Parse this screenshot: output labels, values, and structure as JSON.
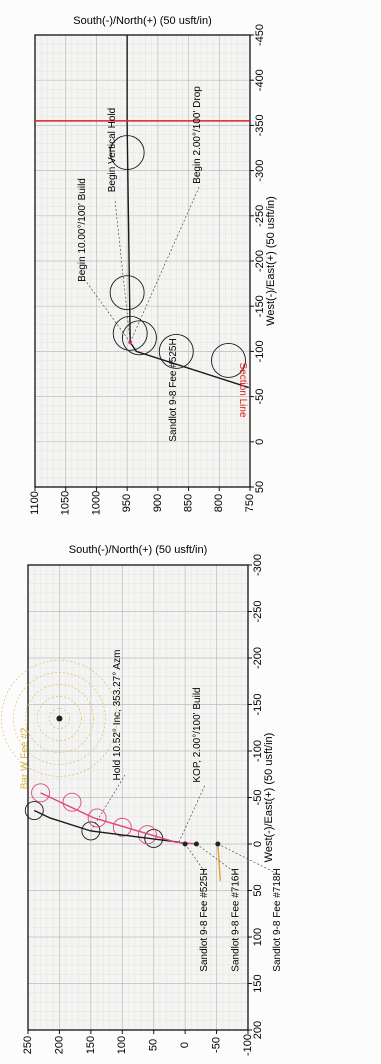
{
  "chart_data": [
    {
      "type": "line",
      "panel": "plan view (page rotated 90 degrees)",
      "title": "",
      "xlabel": "West(-)/East(+) (50 usft/in)",
      "ylabel": "South(-)/North(+) (50 usft/in)",
      "xlim": [
        -300,
        200
      ],
      "ylim": [
        -100,
        250
      ],
      "x_ticks": [
        "-300",
        "-250",
        "-200",
        "-150",
        "-100",
        "-50",
        "0",
        "50",
        "100",
        "150",
        "200"
      ],
      "y_ticks": [
        "-100",
        "-50",
        "0",
        "50",
        "100",
        "150",
        "200",
        "250"
      ],
      "grid": true,
      "series": [
        {
          "name": "Sandlot 9-8 Fee #525H",
          "color": "#1a1a1a",
          "x": [
            0,
            -2,
            -14,
            -28,
            -36
          ],
          "y": [
            0,
            10,
            150,
            215,
            240
          ]
        },
        {
          "name": "Sandlot 9-8 Fee #716H",
          "color": "#e0457b",
          "x": [
            0,
            -2,
            -28,
            -55
          ],
          "y": [
            -18,
            15,
            145,
            230
          ]
        },
        {
          "name": "Sandlot 9-8 Fee #718H",
          "color": "#e8a030",
          "x": [
            0,
            20,
            40
          ],
          "y": [
            -52,
            -54,
            -56
          ]
        }
      ],
      "well_markers": [
        {
          "label": "Sandlot 9-8 Fee #525H",
          "x": 0,
          "y": 0
        },
        {
          "label": "Sandlot 9-8 Fee #716H",
          "x": 0,
          "y": -18
        },
        {
          "label": "Sandlot 9-8 Fee #718H",
          "x": 0,
          "y": -52
        }
      ],
      "annotations": [
        {
          "text": "Hold 10.52° Inc, 353.27° Azm",
          "x": -14,
          "y": 150
        },
        {
          "text": "KOP, 2.00°/100' Build",
          "x": -2,
          "y": 10
        },
        {
          "text": "Bar W Fee #2",
          "x": -135,
          "y": 200
        }
      ],
      "uncertainty_circles": [
        {
          "x": -36,
          "y": 240
        },
        {
          "x": -14,
          "y": 150
        },
        {
          "x": -6,
          "y": 50
        },
        {
          "x": -55,
          "y": 230
        },
        {
          "x": -45,
          "y": 180
        },
        {
          "x": -28,
          "y": 140
        },
        {
          "x": -18,
          "y": 100
        },
        {
          "x": -10,
          "y": 60
        }
      ],
      "offset_well": {
        "label": "Bar W Fee #2",
        "x": -135,
        "y": 200
      }
    },
    {
      "type": "line",
      "panel": "vertical section view (page rotated 90 degrees)",
      "title": "",
      "xlabel": "West(-)/East(+) (50 usft/in)",
      "ylabel": "South(-)/North(+) (50 usft/in)",
      "xlim": [
        -450,
        50
      ],
      "ylim": [
        750,
        1100
      ],
      "x_ticks": [
        "-450",
        "-400",
        "-350",
        "-300",
        "-250",
        "-200",
        "-150",
        "-100",
        "-50",
        "0",
        "50"
      ],
      "y_ticks": [
        "750",
        "800",
        "850",
        "900",
        "950",
        "1000",
        "1050",
        "1100"
      ],
      "grid": true,
      "series": [
        {
          "name": "Sandlot 9-8 Fee #525H",
          "color": "#1a1a1a",
          "x": [
            -60,
            -100,
            -110,
            -350,
            -450
          ],
          "y": [
            752,
            935,
            945,
            950,
            950
          ]
        },
        {
          "name": "Section Line",
          "color": "#e02020",
          "x": [
            -355,
            -355
          ],
          "y": [
            750,
            1100
          ]
        }
      ],
      "annotations": [
        {
          "text": "Begin 2.00°/100' Drop",
          "x": -100,
          "y": 935
        },
        {
          "text": "Begin Vertical Hold",
          "x": -110,
          "y": 945
        },
        {
          "text": "Begin 10.00°/100' Build",
          "x": -110,
          "y": 945
        },
        {
          "text": "Sandlot 9-8 Fee #525H",
          "x": -450,
          "y": 950
        },
        {
          "text": "Section Line",
          "x": -355,
          "y": 750
        }
      ],
      "uncertainty_circles": [
        {
          "x": -90,
          "y": 785
        },
        {
          "x": -100,
          "y": 870
        },
        {
          "x": -115,
          "y": 930
        },
        {
          "x": -120,
          "y": 945
        },
        {
          "x": -165,
          "y": 950
        },
        {
          "x": -320,
          "y": 950
        }
      ]
    }
  ]
}
